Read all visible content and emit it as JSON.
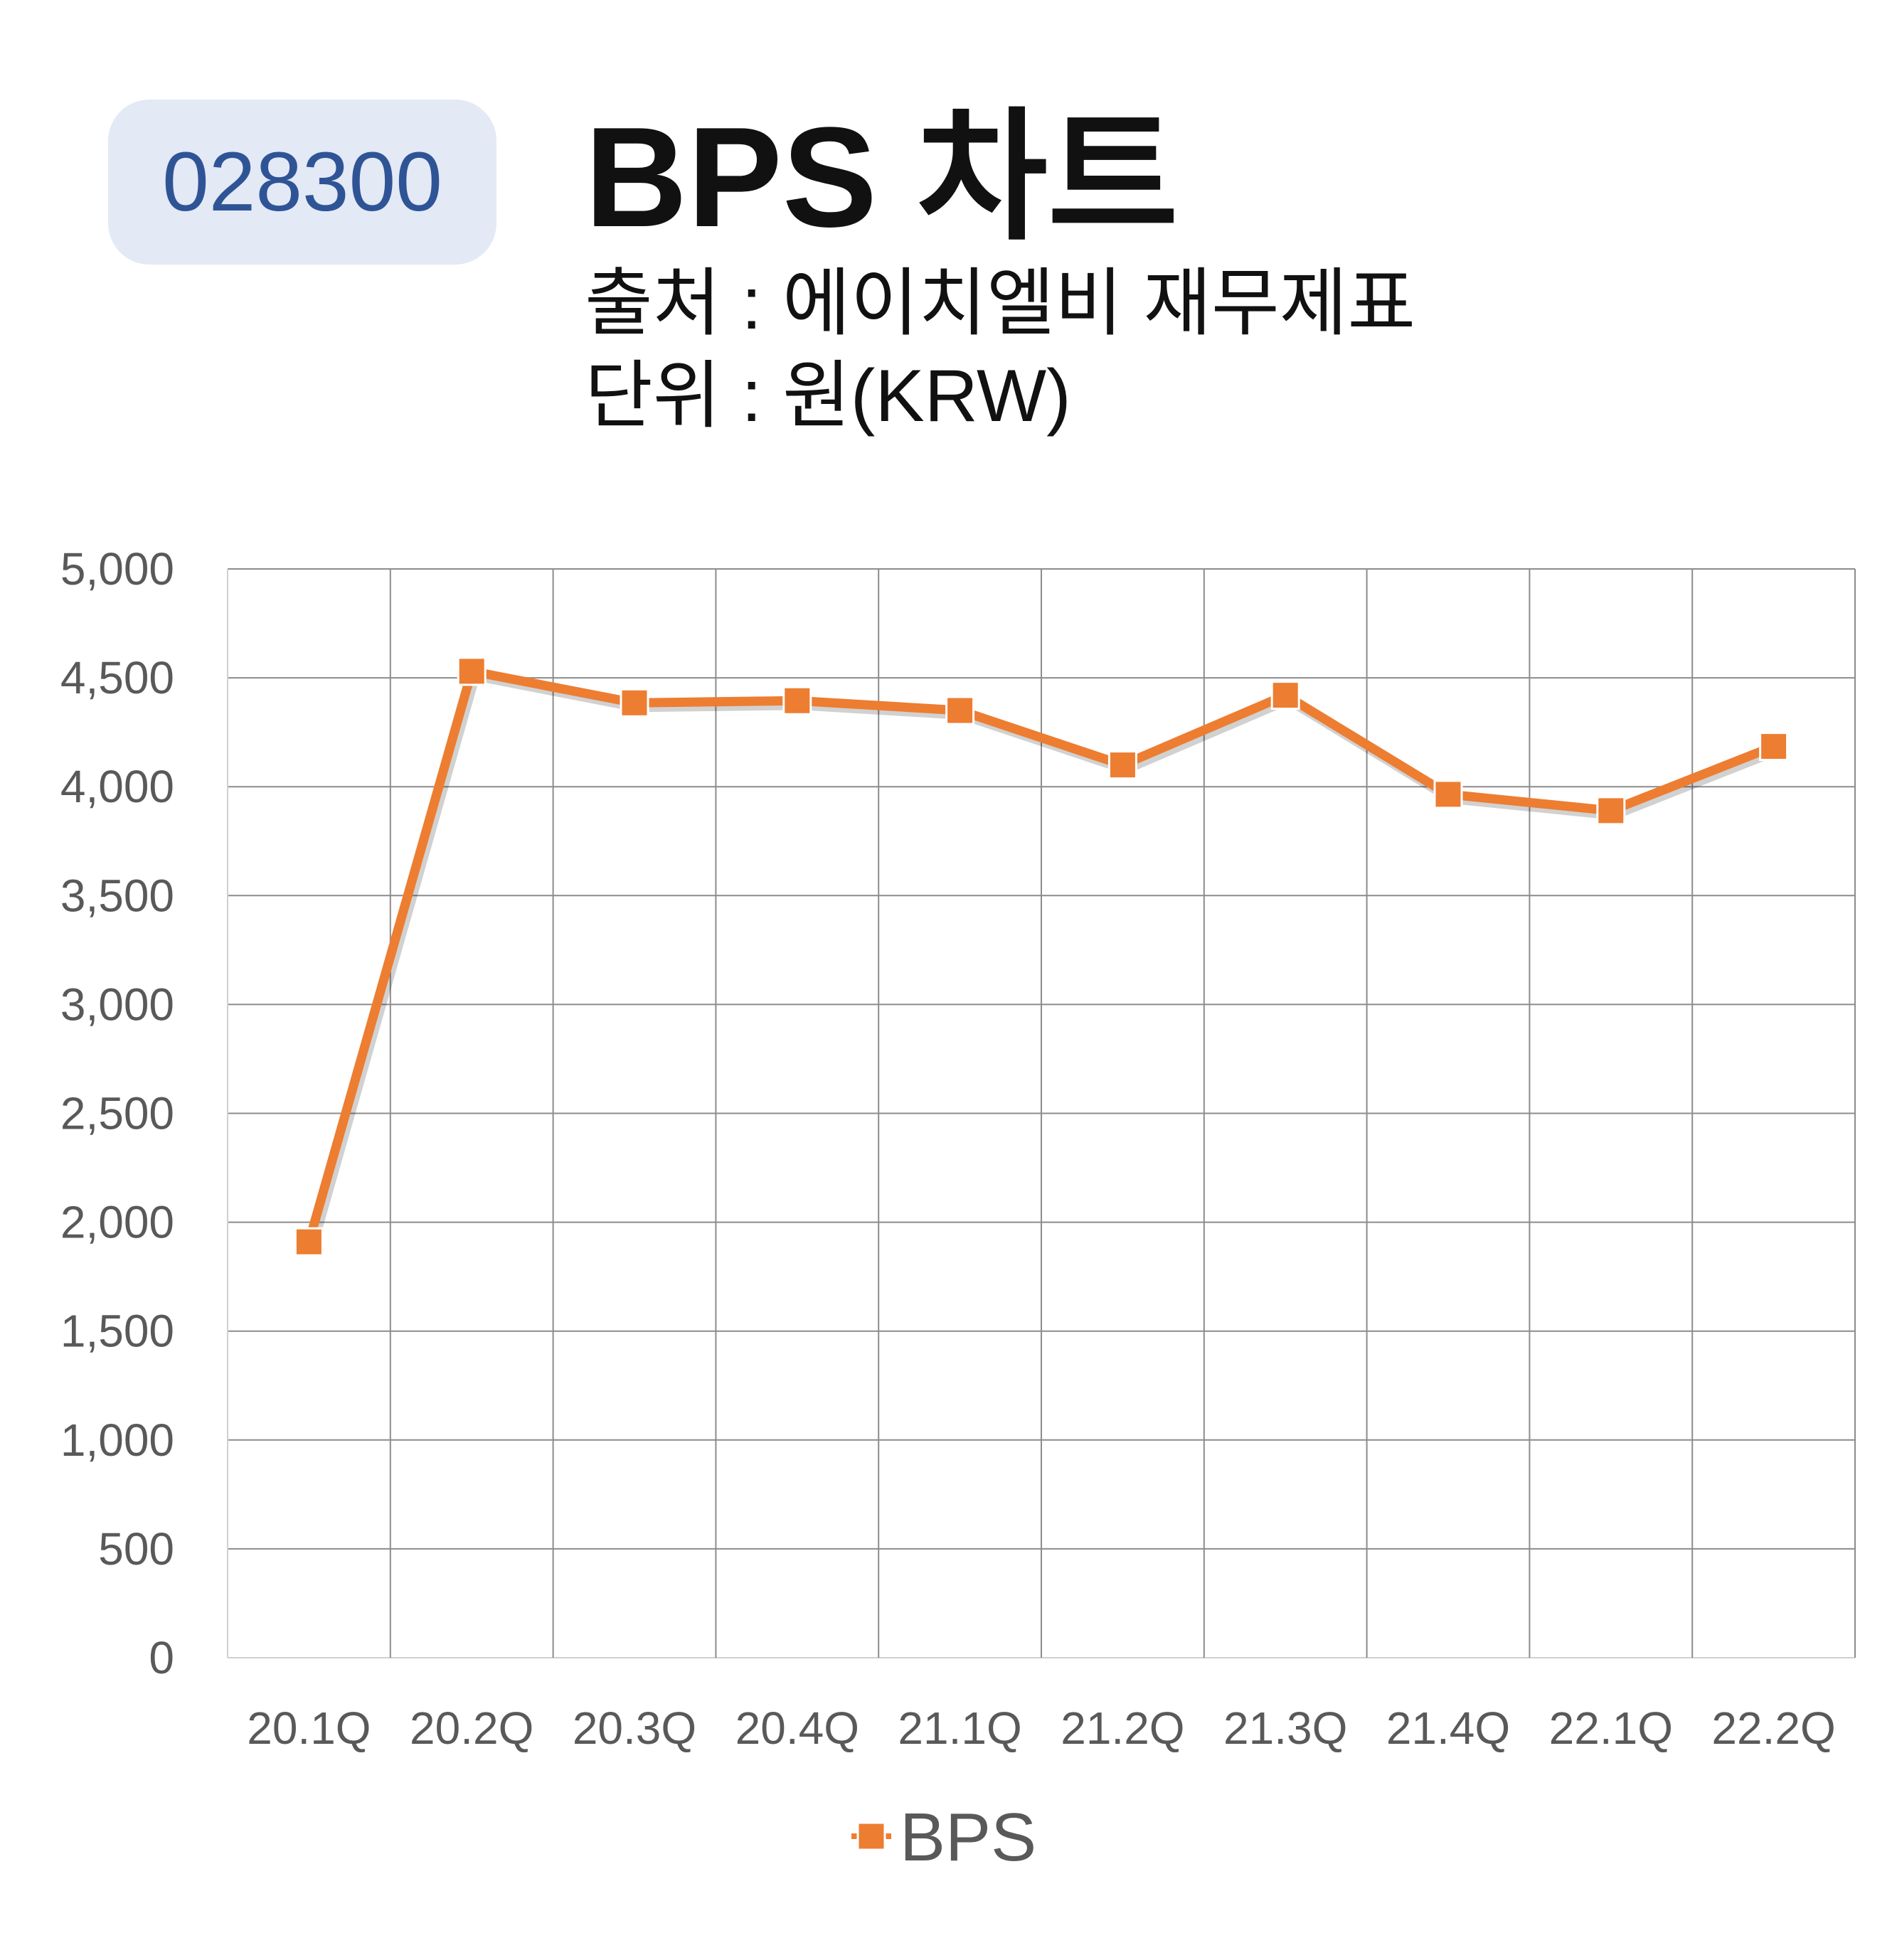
{
  "header": {
    "code": "028300",
    "title": "BPS 차트",
    "source_line": "출처 : 에이치엘비 재무제표",
    "unit_line": "단위 : 원(KRW)"
  },
  "colors": {
    "series": "#ed7d31",
    "badge_bg": "#e3e9f5",
    "badge_text": "#2f5496",
    "grid": "#8c8c8c",
    "tick_text": "#595959"
  },
  "chart_data": {
    "type": "line",
    "categories": [
      "20.1Q",
      "20.2Q",
      "20.3Q",
      "20.4Q",
      "21.1Q",
      "21.2Q",
      "21.3Q",
      "21.4Q",
      "22.1Q",
      "22.2Q"
    ],
    "series": [
      {
        "name": "BPS",
        "values": [
          1910,
          4530,
          4385,
          4395,
          4350,
          4100,
          4420,
          3965,
          3890,
          4185
        ]
      }
    ],
    "ylim": [
      0,
      5000
    ],
    "yticks": [
      "0",
      "500",
      "1,000",
      "1,500",
      "2,000",
      "2,500",
      "3,000",
      "3,500",
      "4,000",
      "4,500",
      "5,000"
    ],
    "grid": true,
    "legend": "bottom",
    "marker": "square"
  }
}
